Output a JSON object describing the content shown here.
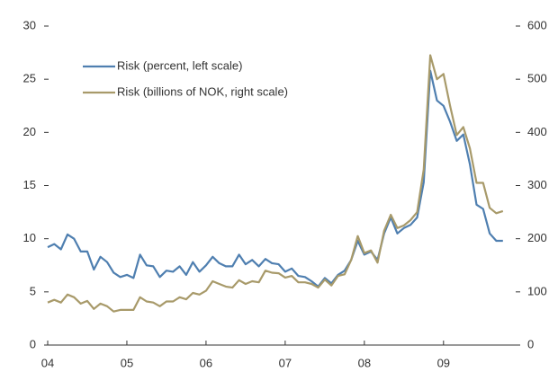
{
  "chart_data": {
    "type": "line",
    "categories": [
      "04",
      null,
      null,
      null,
      null,
      null,
      null,
      null,
      null,
      null,
      null,
      null,
      "05",
      null,
      null,
      null,
      null,
      null,
      null,
      null,
      null,
      null,
      null,
      null,
      "06",
      null,
      null,
      null,
      null,
      null,
      null,
      null,
      null,
      null,
      null,
      null,
      "07",
      null,
      null,
      null,
      null,
      null,
      null,
      null,
      null,
      null,
      null,
      null,
      "08",
      null,
      null,
      null,
      null,
      null,
      null,
      null,
      null,
      null,
      null,
      null,
      "09",
      null,
      null,
      null,
      null,
      null,
      null,
      null,
      null,
      null
    ],
    "series": [
      {
        "name": "Risk (percent, left scale)",
        "color": "#4f7fb0",
        "values": [
          9.2,
          9.5,
          9.0,
          10.4,
          10.0,
          8.8,
          8.8,
          7.1,
          8.3,
          7.8,
          6.8,
          6.4,
          6.6,
          6.3,
          8.5,
          7.5,
          7.4,
          6.4,
          7.0,
          6.9,
          7.4,
          6.6,
          7.8,
          6.9,
          7.5,
          8.3,
          7.7,
          7.4,
          7.4,
          8.5,
          7.6,
          8.0,
          7.4,
          8.1,
          7.7,
          7.6,
          6.9,
          7.2,
          6.5,
          6.4,
          6.0,
          5.5,
          6.3,
          5.8,
          6.6,
          7.0,
          8.0,
          9.8,
          8.5,
          8.8,
          8.0,
          10.5,
          12.0,
          10.5,
          11.0,
          11.3,
          12.0,
          15.3,
          25.8,
          23.0,
          22.5,
          21.0,
          19.2,
          19.8,
          17.0,
          13.2,
          12.8,
          10.5,
          9.8,
          9.8
        ]
      },
      {
        "name": "Risk (billions of NOK, right scale)",
        "color": "#a89a6a",
        "axis": "y2",
        "values": [
          80,
          85,
          80,
          95,
          90,
          78,
          83,
          68,
          78,
          73,
          63,
          66,
          66,
          66,
          90,
          82,
          80,
          73,
          82,
          82,
          90,
          86,
          98,
          95,
          102,
          120,
          115,
          110,
          108,
          122,
          115,
          120,
          118,
          140,
          136,
          135,
          127,
          130,
          118,
          118,
          115,
          108,
          123,
          112,
          130,
          133,
          160,
          205,
          173,
          178,
          155,
          215,
          245,
          220,
          225,
          235,
          250,
          330,
          545,
          500,
          510,
          450,
          395,
          410,
          370,
          305,
          305,
          258,
          248,
          252
        ]
      }
    ],
    "ylim": [
      0,
      30
    ],
    "yticks": [
      0,
      5,
      10,
      15,
      20,
      25,
      30
    ],
    "y2lim": [
      0,
      600
    ],
    "y2ticks": [
      0,
      100,
      200,
      300,
      400,
      500,
      600
    ],
    "grid": false,
    "legend": "upper left"
  }
}
